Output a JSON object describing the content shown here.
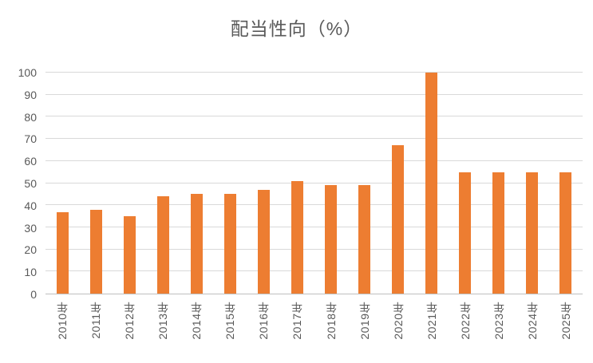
{
  "chart_data": {
    "type": "bar",
    "title": "配当性向（%）",
    "categories": [
      "2010年",
      "2011年",
      "2012年",
      "2013年",
      "2014年",
      "2015年",
      "2016年",
      "2017年",
      "2018年",
      "2019年",
      "2020年",
      "2021年",
      "2022年",
      "2023年",
      "2024年",
      "2025年"
    ],
    "values": [
      37,
      38,
      35,
      44,
      45,
      45,
      47,
      51,
      49,
      49,
      67,
      100,
      55,
      55,
      55,
      55
    ],
    "xlabel": "",
    "ylabel": "",
    "ylim": [
      0,
      100
    ],
    "yticks": [
      0,
      10,
      20,
      30,
      40,
      50,
      60,
      70,
      80,
      90,
      100
    ],
    "grid": true,
    "legend_position": "none",
    "bar_color": "#ED7D31",
    "axis_text_color": "#595959",
    "title_color": "#595959",
    "gridline_color": "#D9D9D9",
    "axis_line_color": "#BFBFBF",
    "background_color": "#FFFFFF"
  }
}
